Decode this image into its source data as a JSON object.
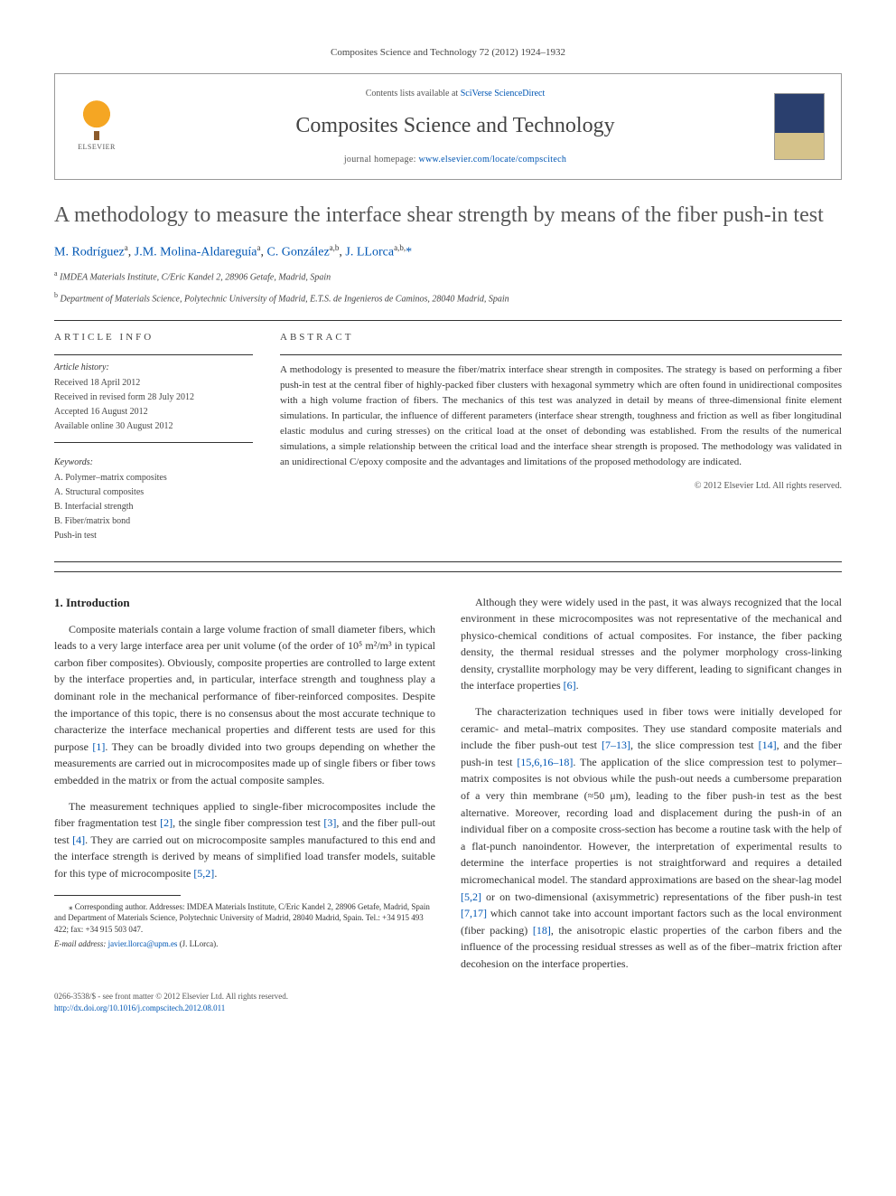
{
  "citation": "Composites Science and Technology 72 (2012) 1924–1932",
  "header": {
    "contents_prefix": "Contents lists available at ",
    "contents_link": "SciVerse ScienceDirect",
    "journal": "Composites Science and Technology",
    "homepage_prefix": "journal homepage: ",
    "homepage_url": "www.elsevier.com/locate/compscitech",
    "publisher_logo_text": "ELSEVIER"
  },
  "title": "A methodology to measure the interface shear strength by means of the fiber push-in test",
  "authors_html": "M. Rodríguez",
  "authors": [
    {
      "name": "M. Rodríguez",
      "sup": "a"
    },
    {
      "name": "J.M. Molina-Aldareguía",
      "sup": "a"
    },
    {
      "name": "C. González",
      "sup": "a,b"
    },
    {
      "name": "J. LLorca",
      "sup": "a,b,",
      "corr": "*"
    }
  ],
  "affiliations": [
    {
      "sup": "a",
      "text": "IMDEA Materials Institute, C/Eric Kandel 2, 28906 Getafe, Madrid, Spain"
    },
    {
      "sup": "b",
      "text": "Department of Materials Science, Polytechnic University of Madrid, E.T.S. de Ingenieros de Caminos, 28040 Madrid, Spain"
    }
  ],
  "info": {
    "heading": "ARTICLE INFO",
    "history_label": "Article history:",
    "history": [
      "Received 18 April 2012",
      "Received in revised form 28 July 2012",
      "Accepted 16 August 2012",
      "Available online 30 August 2012"
    ],
    "keywords_label": "Keywords:",
    "keywords": [
      "A. Polymer–matrix composites",
      "A. Structural composites",
      "B. Interfacial strength",
      "B. Fiber/matrix bond",
      "Push-in test"
    ]
  },
  "abstract": {
    "heading": "ABSTRACT",
    "text": "A methodology is presented to measure the fiber/matrix interface shear strength in composites. The strategy is based on performing a fiber push-in test at the central fiber of highly-packed fiber clusters with hexagonal symmetry which are often found in unidirectional composites with a high volume fraction of fibers. The mechanics of this test was analyzed in detail by means of three-dimensional finite element simulations. In particular, the influence of different parameters (interface shear strength, toughness and friction as well as fiber longitudinal elastic modulus and curing stresses) on the critical load at the onset of debonding was established. From the results of the numerical simulations, a simple relationship between the critical load and the interface shear strength is proposed. The methodology was validated in an unidirectional C/epoxy composite and the advantages and limitations of the proposed methodology are indicated.",
    "copyright": "© 2012 Elsevier Ltd. All rights reserved."
  },
  "body": {
    "section1_heading": "1. Introduction",
    "p1": "Composite materials contain a large volume fraction of small diameter fibers, which leads to a very large interface area per unit volume (of the order of 10⁵ m²/m³ in typical carbon fiber composites). Obviously, composite properties are controlled to large extent by the interface properties and, in particular, interface strength and toughness play a dominant role in the mechanical performance of fiber-reinforced composites. Despite the importance of this topic, there is no consensus about the most accurate technique to characterize the interface mechanical properties and different tests are used for this purpose [1]. They can be broadly divided into two groups depending on whether the measurements are carried out in microcomposites made up of single fibers or fiber tows embedded in the matrix or from the actual composite samples.",
    "p2": "The measurement techniques applied to single-fiber microcomposites include the fiber fragmentation test [2], the single fiber compression test [3], and the fiber pull-out test [4]. They are carried out on microcomposite samples manufactured to this end and the interface strength is derived by means of simplified load transfer models, suitable for this type of microcomposite [5,2].",
    "p3": "Although they were widely used in the past, it was always recognized that the local environment in these microcomposites was not representative of the mechanical and physico-chemical conditions of actual composites. For instance, the fiber packing density, the thermal residual stresses and the polymer morphology cross-linking density, crystallite morphology may be very different, leading to significant changes in the interface properties [6].",
    "p4": "The characterization techniques used in fiber tows were initially developed for ceramic- and metal–matrix composites. They use standard composite materials and include the fiber push-out test [7–13], the slice compression test [14], and the fiber push-in test [15,6,16–18]. The application of the slice compression test to polymer–matrix composites is not obvious while the push-out needs a cumbersome preparation of a very thin membrane (≈50 μm), leading to the fiber push-in test as the best alternative. Moreover, recording load and displacement during the push-in of an individual fiber on a composite cross-section has become a routine task with the help of a flat-punch nanoindentor. However, the interpretation of experimental results to determine the interface properties is not straightforward and requires a detailed micromechanical model. The standard approximations are based on the shear-lag model [5,2] or on two-dimensional (axisymmetric) representations of the fiber push-in test [7,17] which cannot take into account important factors such as the local environment (fiber packing) [18], the anisotropic elastic properties of the carbon fibers and the influence of the processing residual stresses as well as of the fiber–matrix friction after decohesion on the interface properties."
  },
  "footnote": {
    "corr": "⁎ Corresponding author. Addresses: IMDEA Materials Institute, C/Eric Kandel 2, 28906 Getafe, Madrid, Spain and Department of Materials Science, Polytechnic University of Madrid, 28040 Madrid, Spain. Tel.: +34 915 493 422; fax: +34 915 503 047.",
    "email_label": "E-mail address: ",
    "email": "javier.llorca@upm.es",
    "email_owner": " (J. LLorca)."
  },
  "bottom": {
    "issn_line": "0266-3538/$ - see front matter © 2012 Elsevier Ltd. All rights reserved.",
    "doi": "http://dx.doi.org/10.1016/j.compscitech.2012.08.011"
  },
  "colors": {
    "link": "#0056b3",
    "title_gray": "#555555",
    "rule": "#333333"
  }
}
